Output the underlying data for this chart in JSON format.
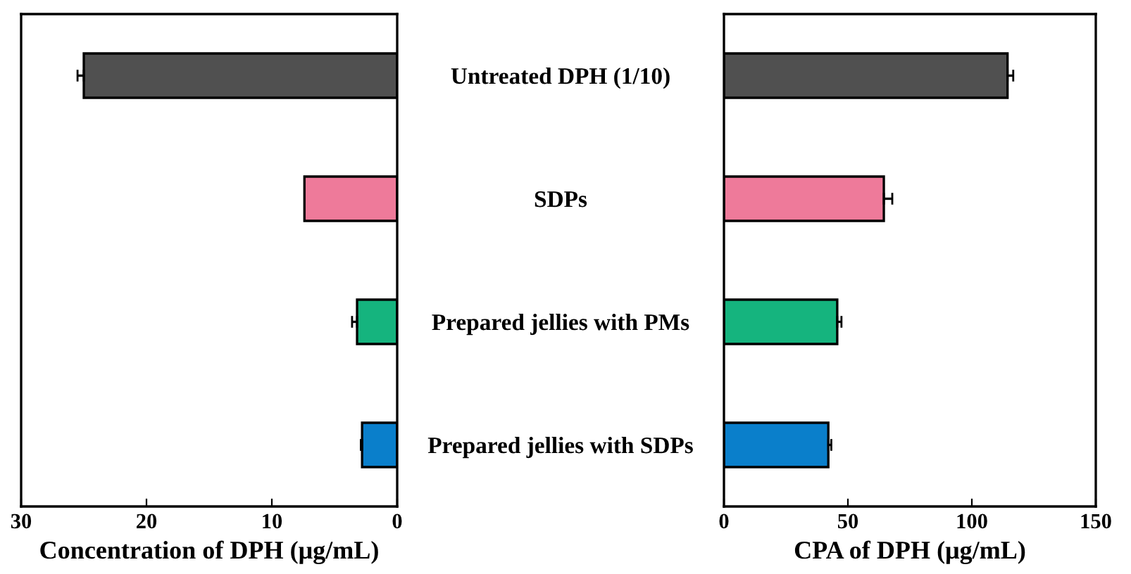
{
  "chart_data": [
    {
      "type": "bar",
      "orientation": "horizontal",
      "xlabel": "Concentration of DPH (μg/mL)",
      "categories": [
        null,
        null,
        null,
        null
      ],
      "values": [
        25,
        7.4,
        3.2,
        2.8
      ],
      "errors": [
        [
          25,
          25.5
        ],
        null,
        [
          3.2,
          3.6
        ],
        [
          2.8,
          2.9
        ]
      ],
      "colors": [
        "#505050",
        "#ee7a9a",
        "#15b47e",
        "#0a7fcb"
      ],
      "xlim": [
        30,
        0
      ],
      "xticks": [
        30,
        20,
        10,
        0
      ],
      "tick_labels": "x",
      "grid": false,
      "legend": false
    },
    {
      "type": "bar",
      "orientation": "horizontal",
      "xlabel": "CPA of DPH (μg/mL)",
      "categories": [
        "Untreated DPH (1/10)",
        "SDPs",
        "Prepared jellies with PMs",
        "Prepared jellies with SDPs"
      ],
      "values": [
        114.4,
        64.5,
        45.7,
        42.1
      ],
      "errors": [
        [
          114.4,
          116.7
        ],
        [
          64.5,
          67.9
        ],
        [
          45.7,
          47.4
        ],
        [
          42.1,
          43.3
        ]
      ],
      "colors": [
        "#505050",
        "#ee7a9a",
        "#15b47e",
        "#0a7fcb"
      ],
      "xlim": [
        0,
        150
      ],
      "xticks": [
        0,
        50,
        100,
        150
      ],
      "grid": false,
      "legend": false
    }
  ]
}
